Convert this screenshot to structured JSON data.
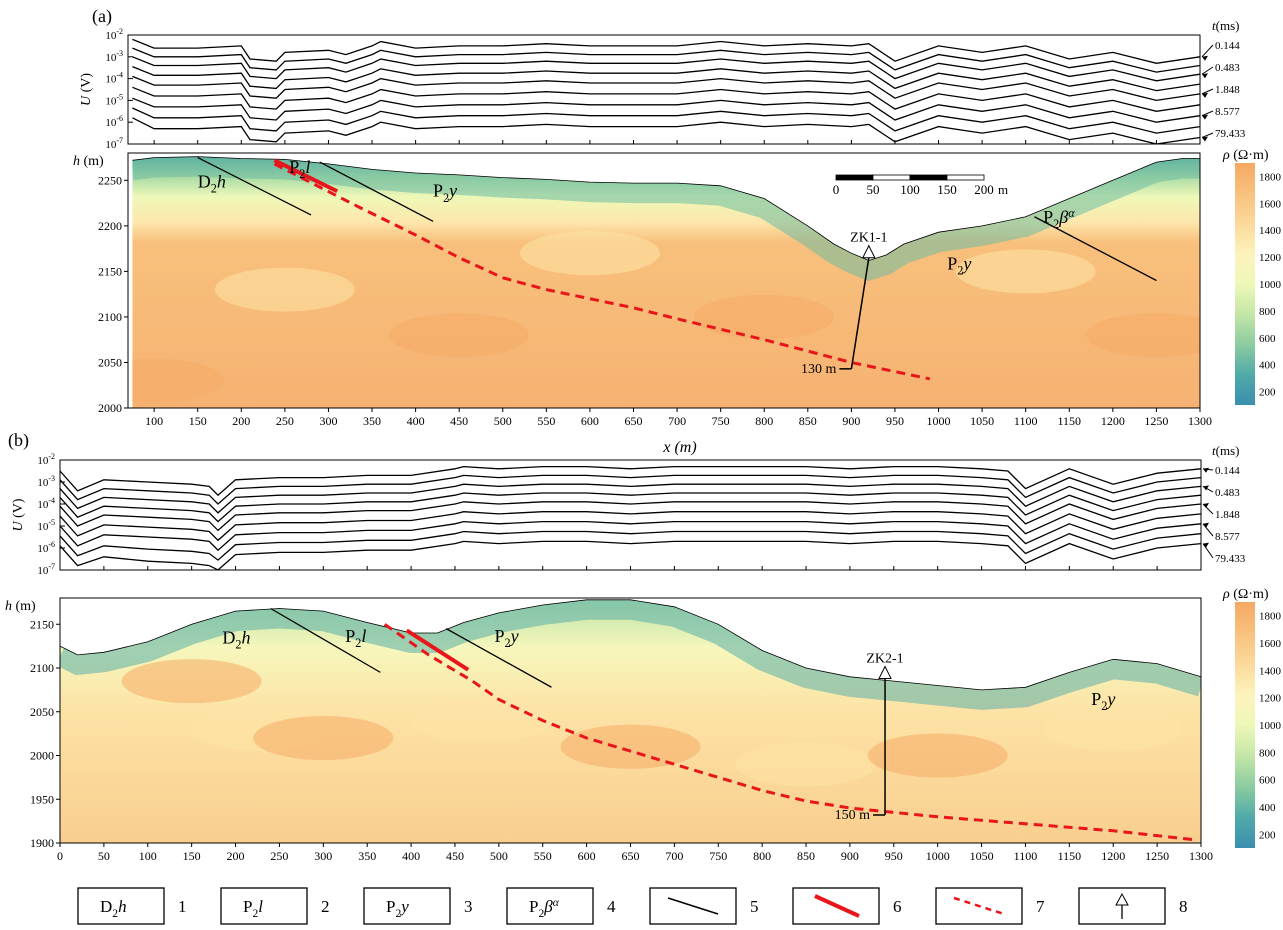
{
  "colors": {
    "low": "#3c93b0",
    "mid": "#fcfbc5",
    "high": "#f5ac66",
    "fault_solid": "#e8151a",
    "fault_dashed": "#e8151a"
  },
  "chart_data": [
    {
      "panel": "(a)",
      "type": "line",
      "ylabel": "U (V)",
      "series_header": "t (ms)",
      "series_labels": [
        "0.144",
        "0.483",
        "1.848",
        "8.577",
        "79.433"
      ],
      "yticks": [
        "10^-2",
        "10^-3",
        "10^-4",
        "10^-5",
        "10^-6",
        "10^-7"
      ],
      "xlim": [
        70,
        1300
      ],
      "ylog": true,
      "x": [
        75,
        100,
        150,
        200,
        210,
        240,
        250,
        300,
        320,
        350,
        360,
        400,
        450,
        500,
        550,
        600,
        650,
        700,
        750,
        800,
        850,
        900,
        920,
        950,
        1000,
        1050,
        1100,
        1150,
        1200,
        1250,
        1300
      ],
      "curves_log10": [
        [
          -2.2,
          -2.6,
          -2.6,
          -2.5,
          -3.1,
          -3.2,
          -2.8,
          -2.7,
          -2.9,
          -2.5,
          -2.3,
          -2.6,
          -2.5,
          -2.5,
          -2.4,
          -2.5,
          -2.5,
          -2.5,
          -2.3,
          -2.5,
          -2.4,
          -2.5,
          -2.4,
          -3.2,
          -2.5,
          -2.8,
          -2.5,
          -3.1,
          -2.8,
          -3.3,
          -3.0
        ],
        [
          -3.0,
          -3.4,
          -3.4,
          -3.3,
          -3.9,
          -4.0,
          -3.6,
          -3.5,
          -3.7,
          -3.3,
          -3.1,
          -3.4,
          -3.3,
          -3.3,
          -3.2,
          -3.3,
          -3.3,
          -3.3,
          -3.1,
          -3.3,
          -3.2,
          -3.3,
          -3.2,
          -4.0,
          -3.3,
          -3.6,
          -3.3,
          -3.9,
          -3.6,
          -4.1,
          -3.8
        ],
        [
          -3.9,
          -4.3,
          -4.3,
          -4.2,
          -4.8,
          -4.9,
          -4.5,
          -4.4,
          -4.6,
          -4.2,
          -4.0,
          -4.3,
          -4.2,
          -4.2,
          -4.1,
          -4.2,
          -4.2,
          -4.2,
          -4.0,
          -4.2,
          -4.1,
          -4.2,
          -4.1,
          -4.9,
          -4.2,
          -4.5,
          -4.2,
          -4.8,
          -4.5,
          -5.0,
          -4.7
        ],
        [
          -4.9,
          -5.3,
          -5.3,
          -5.2,
          -5.8,
          -5.9,
          -5.5,
          -5.4,
          -5.6,
          -5.2,
          -5.0,
          -5.3,
          -5.2,
          -5.2,
          -5.1,
          -5.2,
          -5.2,
          -5.2,
          -5.0,
          -5.2,
          -5.1,
          -5.2,
          -5.1,
          -5.9,
          -5.2,
          -5.5,
          -5.2,
          -5.8,
          -5.5,
          -6.0,
          -5.7
        ],
        [
          -5.8,
          -6.3,
          -6.3,
          -6.2,
          -6.8,
          -6.9,
          -6.5,
          -6.4,
          -6.6,
          -6.2,
          -6.0,
          -6.3,
          -6.2,
          -6.2,
          -6.1,
          -6.2,
          -6.2,
          -6.2,
          -6.0,
          -6.2,
          -6.1,
          -6.2,
          -6.1,
          -6.9,
          -6.2,
          -6.5,
          -6.2,
          -6.8,
          -6.5,
          -7.0,
          -6.7
        ]
      ],
      "ylabel2": "h (m)",
      "xlabel": "x (m)",
      "xticks": [
        100,
        150,
        200,
        250,
        300,
        350,
        400,
        450,
        500,
        550,
        600,
        650,
        700,
        750,
        800,
        850,
        900,
        950,
        1000,
        1050,
        1100,
        1150,
        1200,
        1250,
        1300
      ],
      "hticks": [
        2000,
        2050,
        2100,
        2150,
        2200,
        2250
      ],
      "hlim": [
        2000,
        2280
      ],
      "colorbar_title": "ρ (Ω·m)",
      "colorbar_ticks": [
        200,
        400,
        600,
        800,
        1000,
        1200,
        1400,
        1600,
        1800
      ],
      "colorbar_range": [
        100,
        1900
      ],
      "terrain": [
        [
          75,
          2272
        ],
        [
          100,
          2275
        ],
        [
          150,
          2276
        ],
        [
          200,
          2274
        ],
        [
          250,
          2273
        ],
        [
          300,
          2268
        ],
        [
          350,
          2262
        ],
        [
          400,
          2258
        ],
        [
          450,
          2256
        ],
        [
          500,
          2253
        ],
        [
          550,
          2251
        ],
        [
          600,
          2248
        ],
        [
          650,
          2247
        ],
        [
          700,
          2247
        ],
        [
          750,
          2244
        ],
        [
          800,
          2230
        ],
        [
          850,
          2200
        ],
        [
          880,
          2180
        ],
        [
          900,
          2170
        ],
        [
          920,
          2162
        ],
        [
          940,
          2168
        ],
        [
          960,
          2180
        ],
        [
          1000,
          2193
        ],
        [
          1050,
          2200
        ],
        [
          1100,
          2210
        ],
        [
          1150,
          2230
        ],
        [
          1200,
          2250
        ],
        [
          1250,
          2270
        ],
        [
          1280,
          2274
        ],
        [
          1300,
          2274
        ]
      ],
      "formations": [
        {
          "label_main": "D",
          "label_sub": "2",
          "label_tail": "h",
          "x": 150,
          "h": 2242
        },
        {
          "label_main": "P",
          "label_sub": "2",
          "label_tail": "l",
          "x": 255,
          "h": 2258
        },
        {
          "label_main": "P",
          "label_sub": "2",
          "label_tail": "y",
          "x": 420,
          "h": 2232
        },
        {
          "label_main": "P",
          "label_sub": "2",
          "label_tail": "y",
          "x": 1010,
          "h": 2152
        },
        {
          "label_main": "P",
          "label_sub": "2",
          "label_tail": "βα",
          "x": 1120,
          "h": 2203
        }
      ],
      "boundaries": [
        [
          [
            150,
            2275
          ],
          [
            280,
            2212
          ]
        ],
        [
          [
            290,
            2270
          ],
          [
            420,
            2205
          ]
        ],
        [
          [
            1110,
            2210
          ],
          [
            1250,
            2140
          ]
        ]
      ],
      "fault_solid": [
        [
          238,
          2272
        ],
        [
          310,
          2238
        ]
      ],
      "fault_dashed": [
        [
          238,
          2268
        ],
        [
          330,
          2223
        ],
        [
          400,
          2190
        ],
        [
          450,
          2165
        ],
        [
          500,
          2143
        ],
        [
          550,
          2130
        ],
        [
          600,
          2120
        ],
        [
          650,
          2110
        ],
        [
          700,
          2098
        ],
        [
          800,
          2075
        ],
        [
          900,
          2050
        ],
        [
          990,
          2032
        ]
      ],
      "borehole": {
        "label": "ZK1-1",
        "x_top": 920,
        "h_top": 2165,
        "x_bot": 900,
        "h_bot": 2043,
        "depth_label": "130 m"
      },
      "scale_bar": {
        "ticks": [
          "0",
          "50",
          "100",
          "150",
          "200"
        ],
        "unit": "m"
      },
      "field_levels_major_x": [
        100,
        250,
        450,
        600,
        800,
        1100,
        1250
      ],
      "field_levels_major_h": [
        2030,
        2130,
        2080,
        2170,
        2100,
        2150,
        2080
      ]
    },
    {
      "panel": "(b)",
      "type": "line",
      "ylabel": "U (V)",
      "series_header": "t (ms)",
      "series_labels": [
        "0.144",
        "0.483",
        "1.848",
        "8.577",
        "79.433"
      ],
      "yticks": [
        "10^-2",
        "10^-3",
        "10^-4",
        "10^-5",
        "10^-6",
        "10^-7"
      ],
      "xlim": [
        0,
        1300
      ],
      "ylog": true,
      "x": [
        0,
        20,
        50,
        100,
        150,
        170,
        180,
        200,
        250,
        300,
        350,
        400,
        450,
        460,
        500,
        550,
        600,
        650,
        700,
        750,
        800,
        850,
        900,
        950,
        1000,
        1050,
        1080,
        1100,
        1150,
        1200,
        1250,
        1300
      ],
      "curves_log10": [
        [
          -2.5,
          -3.4,
          -2.9,
          -3.0,
          -3.1,
          -3.2,
          -3.6,
          -2.9,
          -2.8,
          -2.8,
          -2.7,
          -2.7,
          -2.4,
          -2.3,
          -2.4,
          -2.3,
          -2.3,
          -2.4,
          -2.3,
          -2.3,
          -2.3,
          -2.3,
          -2.4,
          -2.3,
          -2.3,
          -2.4,
          -2.5,
          -3.3,
          -2.4,
          -3.1,
          -2.6,
          -2.4
        ],
        [
          -3.3,
          -4.2,
          -3.7,
          -3.8,
          -3.9,
          -4.0,
          -4.4,
          -3.7,
          -3.6,
          -3.6,
          -3.5,
          -3.5,
          -3.2,
          -3.1,
          -3.2,
          -3.1,
          -3.1,
          -3.2,
          -3.1,
          -3.1,
          -3.1,
          -3.1,
          -3.2,
          -3.1,
          -3.1,
          -3.2,
          -3.3,
          -4.1,
          -3.2,
          -3.9,
          -3.4,
          -3.2
        ],
        [
          -4.1,
          -5.0,
          -4.5,
          -4.6,
          -4.7,
          -4.8,
          -5.2,
          -4.5,
          -4.4,
          -4.4,
          -4.3,
          -4.3,
          -4.0,
          -3.9,
          -4.0,
          -3.9,
          -3.9,
          -4.0,
          -3.9,
          -3.9,
          -3.9,
          -3.9,
          -4.0,
          -3.9,
          -3.9,
          -4.0,
          -4.1,
          -4.9,
          -4.0,
          -4.7,
          -4.2,
          -4.0
        ],
        [
          -5.0,
          -5.9,
          -5.4,
          -5.5,
          -5.6,
          -5.7,
          -6.1,
          -5.4,
          -5.3,
          -5.3,
          -5.2,
          -5.2,
          -4.9,
          -4.8,
          -4.9,
          -4.8,
          -4.8,
          -4.9,
          -4.8,
          -4.8,
          -4.8,
          -4.8,
          -4.9,
          -4.8,
          -4.8,
          -4.9,
          -5.0,
          -5.8,
          -4.9,
          -5.6,
          -5.1,
          -4.9
        ],
        [
          -5.9,
          -6.8,
          -6.4,
          -6.6,
          -6.7,
          -6.8,
          -7.0,
          -6.3,
          -6.2,
          -6.2,
          -6.1,
          -6.1,
          -5.8,
          -5.7,
          -5.8,
          -5.7,
          -5.7,
          -5.8,
          -5.7,
          -5.7,
          -5.7,
          -5.7,
          -5.8,
          -5.7,
          -5.7,
          -5.8,
          -5.9,
          -6.7,
          -5.8,
          -6.5,
          -6.0,
          -5.8
        ]
      ],
      "ylabel2": "h (m)",
      "xticks": [
        0,
        50,
        100,
        150,
        200,
        250,
        300,
        350,
        400,
        450,
        500,
        550,
        600,
        650,
        700,
        750,
        800,
        850,
        900,
        950,
        1000,
        1050,
        1100,
        1150,
        1200,
        1250,
        1300
      ],
      "hticks": [
        1900,
        1950,
        2000,
        2050,
        2100,
        2150
      ],
      "hlim": [
        1900,
        2180
      ],
      "colorbar_title": "ρ (Ω·m)",
      "colorbar_ticks": [
        200,
        400,
        600,
        800,
        1000,
        1200,
        1400,
        1600,
        1800
      ],
      "colorbar_range": [
        100,
        1900
      ],
      "terrain": [
        [
          0,
          2125
        ],
        [
          20,
          2115
        ],
        [
          50,
          2118
        ],
        [
          100,
          2130
        ],
        [
          150,
          2150
        ],
        [
          200,
          2165
        ],
        [
          250,
          2168
        ],
        [
          300,
          2165
        ],
        [
          350,
          2152
        ],
        [
          400,
          2140
        ],
        [
          430,
          2140
        ],
        [
          460,
          2152
        ],
        [
          500,
          2163
        ],
        [
          550,
          2172
        ],
        [
          600,
          2178
        ],
        [
          650,
          2178
        ],
        [
          700,
          2170
        ],
        [
          750,
          2150
        ],
        [
          800,
          2120
        ],
        [
          850,
          2100
        ],
        [
          900,
          2090
        ],
        [
          950,
          2085
        ],
        [
          1000,
          2080
        ],
        [
          1050,
          2075
        ],
        [
          1100,
          2078
        ],
        [
          1150,
          2095
        ],
        [
          1200,
          2110
        ],
        [
          1250,
          2105
        ],
        [
          1300,
          2090
        ]
      ],
      "formations": [
        {
          "label_main": "D",
          "label_sub": "2",
          "label_tail": "h",
          "x": 185,
          "h": 2128
        },
        {
          "label_main": "P",
          "label_sub": "2",
          "label_tail": "l",
          "x": 325,
          "h": 2130
        },
        {
          "label_main": "P",
          "label_sub": "2",
          "label_tail": "y",
          "x": 495,
          "h": 2130
        },
        {
          "label_main": "P",
          "label_sub": "2",
          "label_tail": "y",
          "x": 1175,
          "h": 2058
        }
      ],
      "boundaries": [
        [
          [
            240,
            2168
          ],
          [
            365,
            2095
          ]
        ],
        [
          [
            440,
            2145
          ],
          [
            560,
            2078
          ]
        ]
      ],
      "fault_solid": [
        [
          395,
          2143
        ],
        [
          465,
          2098
        ]
      ],
      "fault_dashed": [
        [
          370,
          2150
        ],
        [
          420,
          2115
        ],
        [
          470,
          2085
        ],
        [
          500,
          2064
        ],
        [
          550,
          2040
        ],
        [
          600,
          2020
        ],
        [
          650,
          2005
        ],
        [
          700,
          1990
        ],
        [
          750,
          1975
        ],
        [
          800,
          1960
        ],
        [
          850,
          1948
        ],
        [
          900,
          1940
        ],
        [
          950,
          1935
        ],
        [
          1000,
          1930
        ],
        [
          1100,
          1922
        ],
        [
          1200,
          1914
        ],
        [
          1290,
          1904
        ]
      ],
      "borehole": {
        "label": "ZK2-1",
        "x_top": 940,
        "h_top": 2088,
        "x_bot": 940,
        "h_bot": 1932,
        "depth_label": "150 m"
      },
      "field_levels_major_x": [
        150,
        230,
        300,
        480,
        650,
        850,
        1000,
        1200
      ],
      "field_levels_major_h": [
        2085,
        2030,
        2020,
        2040,
        2010,
        1990,
        2000,
        2030
      ]
    }
  ],
  "legend": [
    {
      "num": "1",
      "kind": "formation",
      "main": "D",
      "sub": "2",
      "tail": "h"
    },
    {
      "num": "2",
      "kind": "formation",
      "main": "P",
      "sub": "2",
      "tail": "l"
    },
    {
      "num": "3",
      "kind": "formation",
      "main": "P",
      "sub": "2",
      "tail": "y"
    },
    {
      "num": "4",
      "kind": "formation",
      "main": "P",
      "sub": "2",
      "tail": "βα"
    },
    {
      "num": "5",
      "kind": "line-black"
    },
    {
      "num": "6",
      "kind": "line-red"
    },
    {
      "num": "7",
      "kind": "line-red-dashed"
    },
    {
      "num": "8",
      "kind": "borehole"
    }
  ]
}
